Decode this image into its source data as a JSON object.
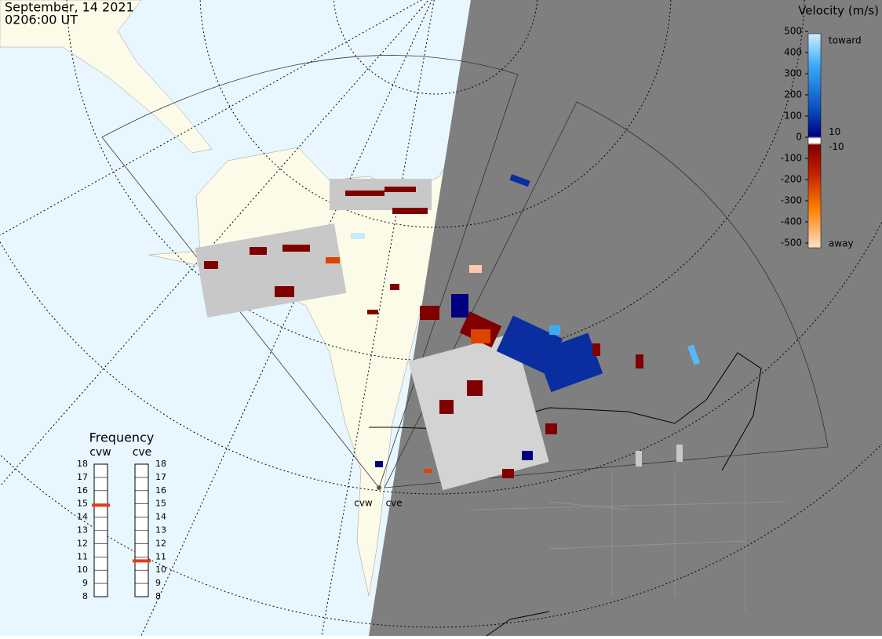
{
  "header": {
    "date": "September, 14 2021",
    "time": "0206:00 UT"
  },
  "velocity_scale": {
    "title": "Velocity (m/s)",
    "ticks": [
      500,
      400,
      300,
      200,
      100,
      0,
      -100,
      -200,
      -300,
      -400,
      -500
    ],
    "inner_ticks": [
      10,
      -10
    ],
    "toward": "toward",
    "away": "away"
  },
  "frequency": {
    "title": "Frequency",
    "ticks": [
      8,
      9,
      10,
      11,
      12,
      13,
      14,
      15,
      16,
      17,
      18
    ],
    "radars": [
      {
        "name": "cvw",
        "value": 14.9
      },
      {
        "name": "cve",
        "value": 10.7
      }
    ]
  },
  "radar_sites": [
    "cvw",
    "cve"
  ]
}
